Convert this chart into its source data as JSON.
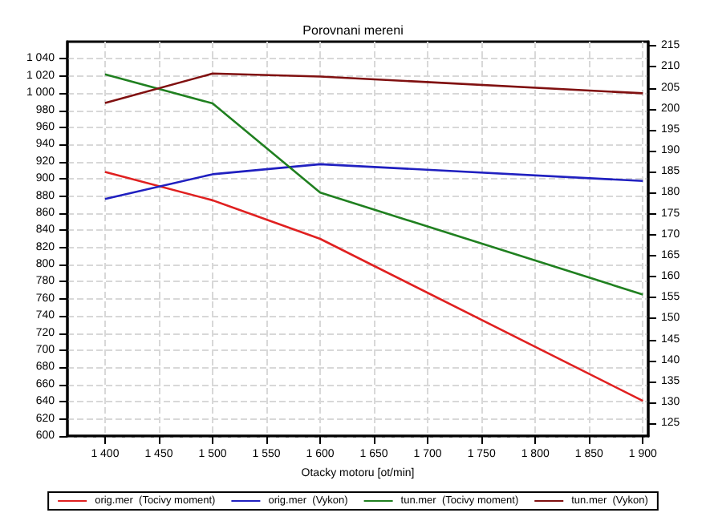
{
  "chart_data": {
    "type": "line",
    "title": "Porovnani mereni",
    "xlabel": "Otacky motoru [ot/min]",
    "xlim": [
      1365,
      1905
    ],
    "xticks": [
      {
        "value": 1400,
        "label": "1 400"
      },
      {
        "value": 1450,
        "label": "1 450"
      },
      {
        "value": 1500,
        "label": "1 500"
      },
      {
        "value": 1550,
        "label": "1 550"
      },
      {
        "value": 1600,
        "label": "1 600"
      },
      {
        "value": 1650,
        "label": "1 650"
      },
      {
        "value": 1700,
        "label": "1 700"
      },
      {
        "value": 1750,
        "label": "1 750"
      },
      {
        "value": 1800,
        "label": "1 800"
      },
      {
        "value": 1850,
        "label": "1 850"
      },
      {
        "value": 1900,
        "label": "1 900"
      }
    ],
    "ylim": [
      600,
      1060
    ],
    "yticks": [
      600,
      620,
      640,
      660,
      680,
      700,
      720,
      740,
      760,
      780,
      800,
      820,
      840,
      860,
      880,
      900,
      920,
      940,
      960,
      980,
      {
        "value": 1000,
        "label": "1 000"
      },
      {
        "value": 1020,
        "label": "1 020"
      },
      {
        "value": 1040,
        "label": "1 040"
      }
    ],
    "y2lim": [
      122,
      216
    ],
    "y2ticks": [
      125,
      130,
      135,
      140,
      145,
      150,
      155,
      160,
      165,
      170,
      175,
      180,
      185,
      190,
      195,
      200,
      205,
      210,
      215
    ],
    "x": [
      1400,
      1500,
      1600,
      1900
    ],
    "series": [
      {
        "name": "orig.mer  (Tocivy moment)",
        "color": "#e02020",
        "values": [
          908,
          875,
          830,
          641
        ]
      },
      {
        "name": "orig.mer  (Vykon)",
        "color": "#2020c0",
        "values": [
          178.5,
          184.4,
          186.8,
          182.8
        ],
        "axis": "y2"
      },
      {
        "name": "tun.mer  (Tocivy moment)",
        "color": "#208020",
        "values": [
          1022,
          988,
          884,
          765
        ]
      },
      {
        "name": "tun.mer  (Vykon)",
        "color": "#801010",
        "values": [
          201.4,
          208.4,
          207.7,
          203.7
        ],
        "axis": "y2"
      }
    ],
    "grid": true,
    "legend": "bottom",
    "marker": "none",
    "line_style": "solid"
  }
}
